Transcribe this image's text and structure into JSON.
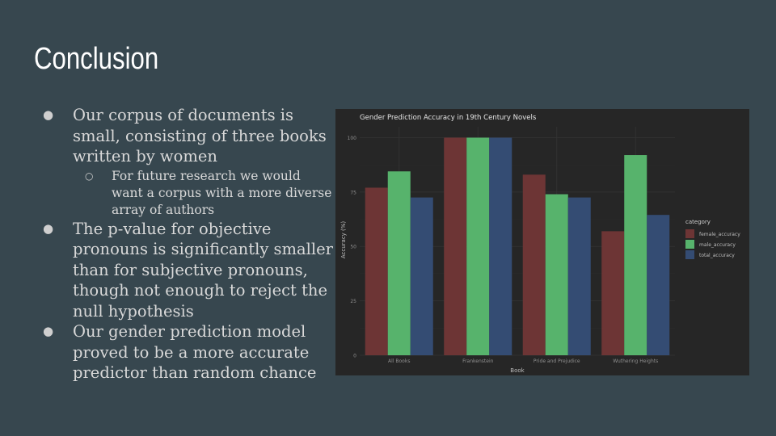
{
  "slide": {
    "title": "Conclusion",
    "bullets": [
      {
        "text": "Our corpus of documents is small, consisting of three books written by women",
        "sub": [
          "For future research we would want a corpus with a more diverse array of authors"
        ]
      },
      {
        "text": "The p-value for objective pronouns is significantly smaller than for subjective pronouns, though not enough to reject the null hypothesis",
        "sub": []
      },
      {
        "text": "Our gender prediction model proved to be a more accurate predictor than random chance",
        "sub": []
      }
    ]
  },
  "chart_data": {
    "type": "bar",
    "title": "Gender Prediction Accuracy in 19th Century Novels",
    "xlabel": "Book",
    "ylabel": "Accuracy (%)",
    "categories": [
      "All Books",
      "Frankenstein",
      "Pride and Prejudice",
      "Wuthering Heights"
    ],
    "series": [
      {
        "name": "female_accuracy",
        "values": [
          77,
          100,
          83,
          57
        ],
        "color": "#6d3535"
      },
      {
        "name": "male_accuracy",
        "values": [
          84.5,
          100,
          74,
          92
        ],
        "color": "#57b36c"
      },
      {
        "name": "total_accuracy",
        "values": [
          72.5,
          100,
          72.5,
          64.5
        ],
        "color": "#344c73"
      }
    ],
    "ylim": [
      0,
      105
    ],
    "yticks": [
      0,
      25,
      50,
      75,
      100
    ],
    "legend_title": "category",
    "legend_position": "right",
    "grid": true
  }
}
